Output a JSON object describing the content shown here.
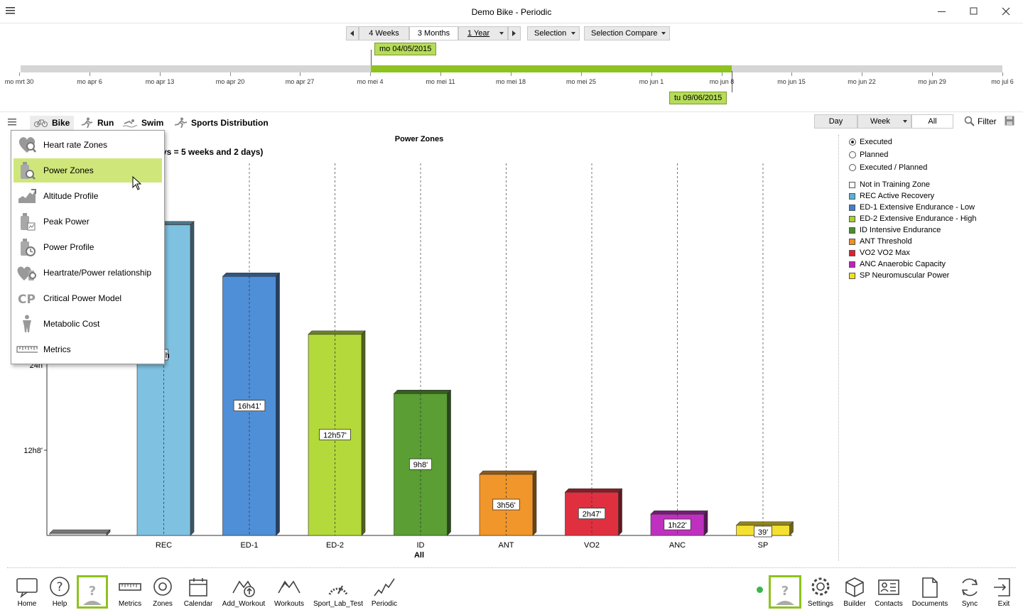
{
  "window": {
    "title": "Demo Bike - Periodic"
  },
  "toolbar": {
    "ranges": [
      "4 Weeks",
      "3 Months",
      "1 Year"
    ],
    "selected_range": "3 Months",
    "selection_label": "Selection",
    "selection_compare_label": "Selection Compare"
  },
  "timeline": {
    "ticks": [
      "mo mrt 30",
      "mo apr 6",
      "mo apr 13",
      "mo apr 20",
      "mo apr 27",
      "mo mei 4",
      "mo mei 11",
      "mo mei 18",
      "mo mei 25",
      "mo jun 1",
      "mo jun 8",
      "mo jun 15",
      "mo jun 22",
      "mo jun 29",
      "mo jul 6"
    ],
    "start_flag": "mo 04/05/2015",
    "end_flag": "tu 09/06/2015"
  },
  "sports": {
    "bike": "Bike",
    "run": "Run",
    "swim": "Swim",
    "distribution": "Sports Distribution"
  },
  "granularity": {
    "day": "Day",
    "week": "Week",
    "all": "All",
    "filter": "Filter"
  },
  "menu": {
    "items": [
      "Heart rate Zones",
      "Power Zones",
      "Altitude Profile",
      "Peak Power",
      "Power Profile",
      "Heartrate/Power relationship",
      "Critical Power Model",
      "Metabolic Cost",
      "Metrics"
    ],
    "active": "Power Zones"
  },
  "chart": {
    "partial_subtitle": "ys = 5 weeks and 2 days)",
    "partial_bar_label": "9h",
    "partial_axis_label": "24h"
  },
  "chart_data": {
    "type": "bar",
    "title": "Power Zones",
    "xlabel": "All",
    "y_ticks": [
      "12h8'"
    ],
    "categories": [
      "",
      "REC",
      "ED-1",
      "ED-2",
      "ID",
      "ANT",
      "VO2",
      "ANC",
      "SP"
    ],
    "values_minutes": [
      0,
      1200,
      1001,
      777,
      548,
      236,
      167,
      82,
      39
    ],
    "value_labels": [
      "",
      "",
      "16h41'",
      "12h57'",
      "9h8'",
      "3h56'",
      "2h47'",
      "1h22'",
      "39'"
    ],
    "colors": [
      "#c8c8c8",
      "#7fc1e1",
      "#4f8fd8",
      "#b3d93a",
      "#5a9e34",
      "#f0962a",
      "#e03040",
      "#c030c0",
      "#f4e030"
    ],
    "ylim_minutes": [
      0,
      1460
    ],
    "grid": "vertical-dashed"
  },
  "legend": {
    "modes": [
      "Executed",
      "Planned",
      "Executed / Planned"
    ],
    "selected_mode": "Executed",
    "zones": [
      {
        "label": "Not in Training Zone",
        "color": "#ffffff"
      },
      {
        "label": "REC Active Recovery",
        "color": "#5bb0d8"
      },
      {
        "label": "ED-1 Extensive Endurance - Low",
        "color": "#3f7fd0"
      },
      {
        "label": "ED-2 Extensive Endurance - High",
        "color": "#a8d22a"
      },
      {
        "label": "ID Intensive Endurance",
        "color": "#4a8f2a"
      },
      {
        "label": "ANT Threshold",
        "color": "#f0901e"
      },
      {
        "label": "VO2 VO2 Max",
        "color": "#e02030"
      },
      {
        "label": "ANC Anaerobic Capacity",
        "color": "#c020c0"
      },
      {
        "label": "SP Neuromuscular Power",
        "color": "#f4e020"
      }
    ]
  },
  "bottom_nav": {
    "left": [
      "Home",
      "Help",
      "",
      "Metrics",
      "Zones",
      "Calendar",
      "Add_Workout",
      "Workouts",
      "Sport_Lab_Test",
      "Periodic"
    ],
    "right": [
      "",
      "Settings",
      "Builder",
      "Contacts",
      "Documents",
      "Sync",
      "Exit"
    ]
  }
}
